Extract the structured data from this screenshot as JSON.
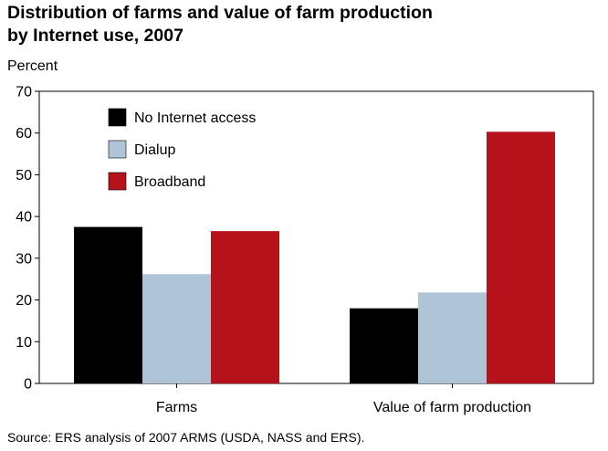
{
  "chart_data": {
    "type": "bar",
    "title_line1": "Distribution of farms and value of farm production",
    "title_line2": "by Internet use, 2007",
    "ylabel": "Percent",
    "xlabel": "",
    "categories": [
      "Farms",
      "Value of farm production"
    ],
    "series": [
      {
        "name": "No Internet access",
        "color": "#000000",
        "values": [
          37.5,
          18
        ]
      },
      {
        "name": "Dialup",
        "color": "#b0c4d8",
        "values": [
          26.2,
          21.8
        ]
      },
      {
        "name": "Broadband",
        "color": "#b5121b",
        "values": [
          36.5,
          60.3
        ]
      }
    ],
    "ylim": [
      0,
      70
    ],
    "yticks": [
      "0",
      "10",
      "20",
      "30",
      "40",
      "50",
      "60",
      "70"
    ],
    "grid": false,
    "legend_position": "top-left",
    "source": "Source: ERS analysis of 2007 ARMS (USDA, NASS and ERS)."
  }
}
